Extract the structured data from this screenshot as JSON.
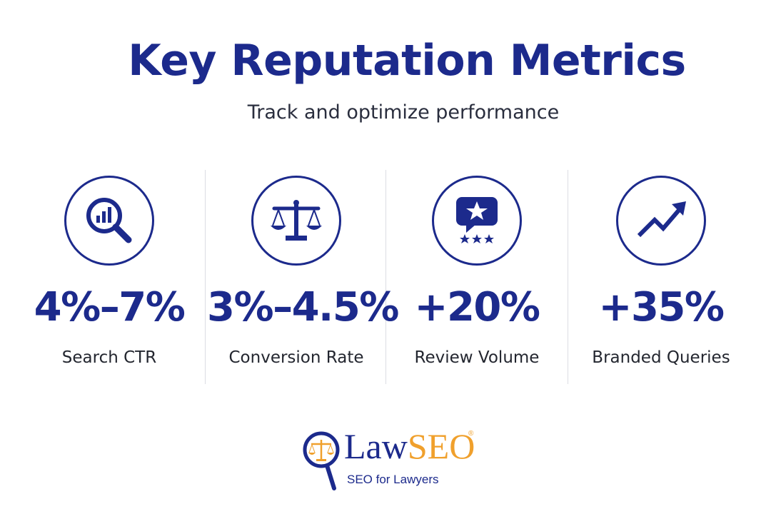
{
  "header": {
    "title": "Key Reputation Metrics",
    "subtitle": "Track and optimize performance"
  },
  "metrics": [
    {
      "icon": "search-chart-icon",
      "value": "4%–7%",
      "label": "Search CTR"
    },
    {
      "icon": "scales-of-justice-icon",
      "value": "3%–4.5%",
      "label": "Conversion Rate"
    },
    {
      "icon": "review-star-bubble-icon",
      "value": "+20%",
      "label": "Review Volume"
    },
    {
      "icon": "trending-up-arrow-icon",
      "value": "+35%",
      "label": "Branded Queries"
    }
  ],
  "logo": {
    "brand_primary": "Law",
    "brand_accent": "SEO",
    "registered": "®",
    "tagline": "SEO for Lawyers"
  },
  "colors": {
    "primary": "#1c2a8c",
    "accent": "#f0a02c",
    "text": "#23262f"
  }
}
